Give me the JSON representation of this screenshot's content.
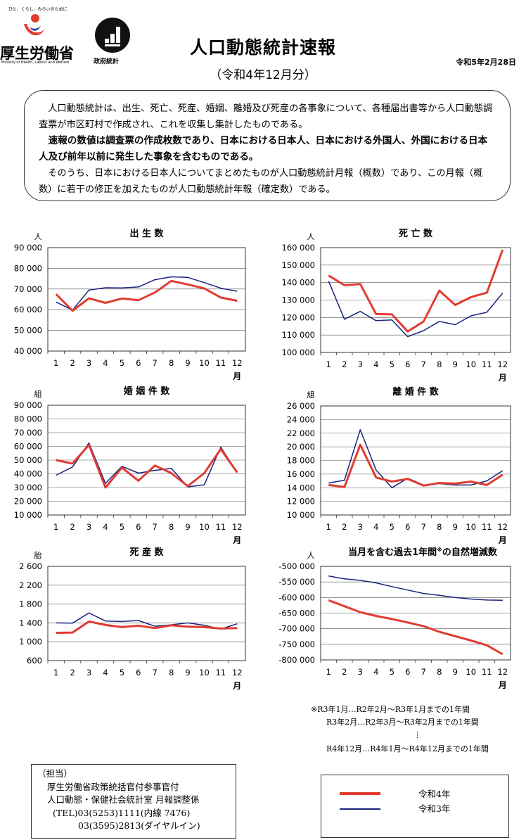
{
  "header": {
    "tagline": "ひと、くらし、みらいのために",
    "ministry_name": "厚生労働省",
    "ministry_en": "Ministry of Health, Labour and Welfare",
    "stat_logo_label": "政府統計",
    "title": "人口動態統計速報",
    "subtitle": "（令和4年12月分）",
    "date": "令和5年2月28日"
  },
  "intro": {
    "p1": "人口動態統計は、出生、死亡、死産、婚姻、離婚及び死産の各事象について、各種届出書等から人口動態調査票が市区町村で作成され、これを収集し集計したものである。",
    "p2": "速報の数値は調査票の作成枚数であり、日本における日本人、日本における外国人、外国における日本人及び前年以前に発生した事象を含むものである。",
    "p3": "そのうち、日本における日本人についてまとめたものが人口動態統計月報（概数）であり、この月報（概数）に若干の修正を加えたものが人口動態統計年報（確定数）である。"
  },
  "colors": {
    "r4": "#e03c31",
    "r3": "#1a237e"
  },
  "chart_data": [
    {
      "type": "line",
      "title": "出 生 数",
      "unit": "人",
      "xunit": "月",
      "ylim": [
        40000,
        90000
      ],
      "yticks": [
        40000,
        50000,
        60000,
        70000,
        80000,
        90000
      ],
      "ytick_labels": [
        "40 000",
        "50 000",
        "60 000",
        "70 000",
        "80 000",
        "90 000"
      ],
      "categories": [
        "1",
        "2",
        "3",
        "4",
        "5",
        "6",
        "7",
        "8",
        "9",
        "10",
        "11",
        "12"
      ],
      "series": [
        {
          "name": "令和4年",
          "values": [
            67500,
            59500,
            65500,
            63300,
            65400,
            64600,
            68300,
            73900,
            72200,
            70300,
            65900,
            64300
          ]
        },
        {
          "name": "令和3年",
          "values": [
            63700,
            59800,
            69500,
            70600,
            70500,
            71000,
            74500,
            75900,
            75600,
            73100,
            70400,
            68900
          ]
        }
      ]
    },
    {
      "type": "line",
      "title": "死 亡 数",
      "unit": "人",
      "xunit": "月",
      "ylim": [
        100000,
        160000
      ],
      "yticks": [
        100000,
        110000,
        120000,
        130000,
        140000,
        150000,
        160000
      ],
      "ytick_labels": [
        "100 000",
        "110 000",
        "120 000",
        "130 000",
        "140 000",
        "150 000",
        "160 000"
      ],
      "categories": [
        "1",
        "2",
        "3",
        "4",
        "5",
        "6",
        "7",
        "8",
        "9",
        "10",
        "11",
        "12"
      ],
      "series": [
        {
          "name": "令和4年",
          "values": [
            144000,
            138500,
            139200,
            122000,
            121800,
            112000,
            117700,
            135400,
            127200,
            131700,
            134200,
            158800
          ]
        },
        {
          "name": "令和3年",
          "values": [
            140800,
            119000,
            123500,
            118200,
            118600,
            109000,
            112500,
            117800,
            115900,
            121000,
            123000,
            134000
          ]
        }
      ]
    },
    {
      "type": "line",
      "title": "婚 姻 件 数",
      "unit": "組",
      "xunit": "月",
      "ylim": [
        10000,
        90000
      ],
      "yticks": [
        10000,
        20000,
        30000,
        40000,
        50000,
        60000,
        70000,
        80000,
        90000
      ],
      "ytick_labels": [
        "10 000",
        "20 000",
        "30 000",
        "40 000",
        "50 000",
        "60 000",
        "70 000",
        "80 000",
        "90 000"
      ],
      "categories": [
        "1",
        "2",
        "3",
        "4",
        "5",
        "6",
        "7",
        "8",
        "9",
        "10",
        "11",
        "12"
      ],
      "series": [
        {
          "name": "令和4年",
          "values": [
            50000,
            47500,
            61000,
            30000,
            44500,
            35000,
            46000,
            40500,
            31000,
            40500,
            58000,
            41000
          ]
        },
        {
          "name": "令和3年",
          "values": [
            39000,
            45000,
            62500,
            33000,
            45500,
            40500,
            42500,
            44000,
            30500,
            32000,
            59500,
            41000
          ]
        }
      ]
    },
    {
      "type": "line",
      "title": "離 婚 件 数",
      "unit": "組",
      "xunit": "月",
      "ylim": [
        10000,
        26000
      ],
      "yticks": [
        10000,
        12000,
        14000,
        16000,
        18000,
        20000,
        22000,
        24000,
        26000
      ],
      "ytick_labels": [
        "10 000",
        "12 000",
        "14 000",
        "16 000",
        "18 000",
        "20 000",
        "22 000",
        "24 000",
        "26 000"
      ],
      "categories": [
        "1",
        "2",
        "3",
        "4",
        "5",
        "6",
        "7",
        "8",
        "9",
        "10",
        "11",
        "12"
      ],
      "series": [
        {
          "name": "令和4年",
          "values": [
            14400,
            14100,
            20300,
            15500,
            14900,
            15300,
            14300,
            14700,
            14600,
            14900,
            14400,
            15900
          ]
        },
        {
          "name": "令和3年",
          "values": [
            14700,
            15100,
            22500,
            16600,
            14000,
            15400,
            14400,
            14600,
            14400,
            14400,
            15000,
            16500
          ]
        }
      ]
    },
    {
      "type": "line",
      "title": "死 産 数",
      "unit": "胎",
      "xunit": "月",
      "ylim": [
        600,
        2600
      ],
      "yticks": [
        600,
        1000,
        1400,
        1800,
        2200,
        2600
      ],
      "ytick_labels": [
        "600",
        "1 000",
        "1 400",
        "1 800",
        "2 200",
        "2 600"
      ],
      "categories": [
        "1",
        "2",
        "3",
        "4",
        "5",
        "6",
        "7",
        "8",
        "9",
        "10",
        "11",
        "12"
      ],
      "series": [
        {
          "name": "令和4年",
          "values": [
            1190,
            1195,
            1430,
            1355,
            1310,
            1340,
            1290,
            1350,
            1320,
            1310,
            1280,
            1290
          ]
        },
        {
          "name": "令和3年",
          "values": [
            1400,
            1395,
            1610,
            1440,
            1430,
            1450,
            1330,
            1360,
            1400,
            1350,
            1270,
            1380
          ]
        }
      ]
    },
    {
      "type": "line",
      "title": "当月を含む過去1年間",
      "title_sup": "※",
      "title_suffix": "の自然増減数",
      "unit": "人",
      "xunit": "月",
      "ylim": [
        -800000,
        -500000
      ],
      "yticks": [
        -800000,
        -750000,
        -700000,
        -650000,
        -600000,
        -550000,
        -500000
      ],
      "ytick_labels": [
        "-800 000",
        "-750 000",
        "-700 000",
        "-650 000",
        "-600 000",
        "-550 000",
        "-500 000"
      ],
      "categories": [
        "1",
        "2",
        "3",
        "4",
        "5",
        "6",
        "7",
        "8",
        "9",
        "10",
        "11",
        "12"
      ],
      "series": [
        {
          "name": "令和4年",
          "values": [
            -609000,
            -628000,
            -647000,
            -659000,
            -669000,
            -680000,
            -692000,
            -710000,
            -724000,
            -738000,
            -753000,
            -782000
          ]
        },
        {
          "name": "令和3年",
          "values": [
            -531000,
            -540000,
            -545000,
            -553000,
            -565000,
            -576000,
            -587000,
            -593000,
            -600000,
            -605000,
            -608000,
            -609000
          ]
        }
      ]
    }
  ],
  "notes": {
    "line1": "※R3年1月…R2年2月～R3年1月までの1年間",
    "line2": "R3年2月…R2年3月～R3年2月までの1年間",
    "line3": "⋮",
    "line4": "R4年12月…R4年1月～R4年12月までの1年間"
  },
  "contact": {
    "line1": "（担当）",
    "line2": "厚生労働省政策統括官付参事官付",
    "line3": "人口動態・保健社会統計室 月報調整係",
    "line4": "(TEL)03(5253)1111(内線 7476)",
    "line5": "03(3595)2813(ダイヤルイン)"
  },
  "legend": {
    "r4": "令和4年",
    "r3": "令和3年"
  }
}
